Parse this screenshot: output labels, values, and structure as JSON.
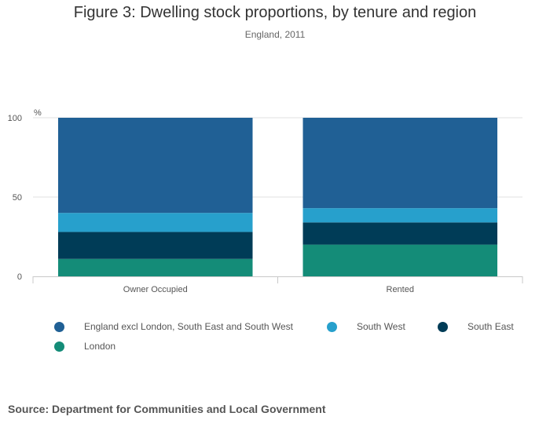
{
  "chart_data": {
    "type": "bar",
    "stacked": true,
    "title": "Figure 3: Dwelling stock proportions, by tenure and region",
    "subtitle": "England, 2011",
    "ylabel": "%",
    "xlabel": "",
    "ylim": [
      0,
      100
    ],
    "yticks": [
      "0",
      "50",
      "100"
    ],
    "categories": [
      "Owner Occupied",
      "Rented"
    ],
    "series": [
      {
        "name": "London",
        "color": "#148c78",
        "values": [
          11,
          20
        ]
      },
      {
        "name": "South East",
        "color": "#003c57",
        "values": [
          17,
          14
        ]
      },
      {
        "name": "South West",
        "color": "#27a0cc",
        "values": [
          12,
          9
        ]
      },
      {
        "name": "England excl London, South East and South West",
        "color": "#206095",
        "values": [
          60,
          57
        ]
      }
    ],
    "legend_order": [
      "England excl London, South East and South West",
      "South West",
      "South East",
      "London"
    ],
    "grid": true
  },
  "source": "Source: Department for Communities and Local Government"
}
